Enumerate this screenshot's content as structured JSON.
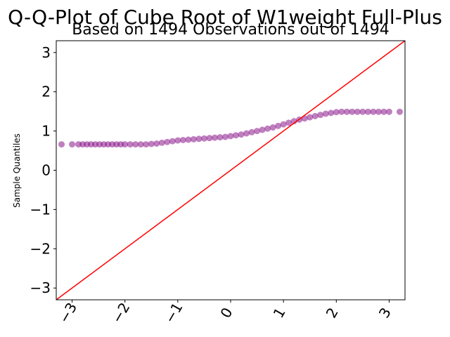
{
  "chart_data": {
    "type": "scatter",
    "title": "Q-Q-Plot of Cube Root of W1weight Full-Plus",
    "subtitle": "Based on 1494 Observations out of 1494",
    "xlabel": "",
    "ylabel": "Sample Quantiles",
    "xlim": [
      -3.3,
      3.3
    ],
    "ylim": [
      -3.3,
      3.3
    ],
    "x_ticks": [
      -3,
      -2,
      -1,
      0,
      1,
      2,
      3
    ],
    "y_ticks": [
      -3,
      -2,
      -1,
      0,
      1,
      2,
      3
    ],
    "x_tick_labels": [
      "−3",
      "−2",
      "−1",
      "0",
      "1",
      "2",
      "3"
    ],
    "y_tick_labels": [
      "−3",
      "−2",
      "−1",
      "0",
      "1",
      "2",
      "3"
    ],
    "grid": false,
    "reference_line": {
      "from": [
        -3.3,
        -3.3
      ],
      "to": [
        3.3,
        3.3
      ],
      "color": "#ff0000"
    },
    "marker_color": "#800080",
    "marker_alpha": 0.5,
    "series": [
      {
        "points": [
          [
            -3.2,
            0.66
          ],
          [
            -3.0,
            0.66
          ],
          [
            -2.88,
            0.66
          ],
          [
            -2.8,
            0.66
          ],
          [
            -2.72,
            0.66
          ],
          [
            -2.64,
            0.66
          ],
          [
            -2.56,
            0.66
          ],
          [
            -2.48,
            0.66
          ],
          [
            -2.4,
            0.66
          ],
          [
            -2.32,
            0.66
          ],
          [
            -2.24,
            0.66
          ],
          [
            -2.16,
            0.66
          ],
          [
            -2.08,
            0.66
          ],
          [
            -2.0,
            0.66
          ],
          [
            -1.9,
            0.66
          ],
          [
            -1.8,
            0.66
          ],
          [
            -1.7,
            0.66
          ],
          [
            -1.6,
            0.66
          ],
          [
            -1.5,
            0.67
          ],
          [
            -1.4,
            0.68
          ],
          [
            -1.3,
            0.7
          ],
          [
            -1.2,
            0.72
          ],
          [
            -1.1,
            0.74
          ],
          [
            -1.0,
            0.76
          ],
          [
            -0.9,
            0.77
          ],
          [
            -0.8,
            0.78
          ],
          [
            -0.7,
            0.79
          ],
          [
            -0.6,
            0.8
          ],
          [
            -0.5,
            0.81
          ],
          [
            -0.4,
            0.82
          ],
          [
            -0.3,
            0.83
          ],
          [
            -0.2,
            0.84
          ],
          [
            -0.1,
            0.85
          ],
          [
            0.0,
            0.87
          ],
          [
            0.1,
            0.89
          ],
          [
            0.2,
            0.91
          ],
          [
            0.3,
            0.94
          ],
          [
            0.4,
            0.97
          ],
          [
            0.5,
            1.0
          ],
          [
            0.6,
            1.03
          ],
          [
            0.7,
            1.06
          ],
          [
            0.8,
            1.09
          ],
          [
            0.9,
            1.13
          ],
          [
            1.0,
            1.17
          ],
          [
            1.1,
            1.21
          ],
          [
            1.2,
            1.25
          ],
          [
            1.3,
            1.29
          ],
          [
            1.4,
            1.32
          ],
          [
            1.5,
            1.35
          ],
          [
            1.6,
            1.38
          ],
          [
            1.7,
            1.41
          ],
          [
            1.8,
            1.44
          ],
          [
            1.9,
            1.46
          ],
          [
            2.0,
            1.48
          ],
          [
            2.1,
            1.49
          ],
          [
            2.2,
            1.49
          ],
          [
            2.3,
            1.49
          ],
          [
            2.4,
            1.49
          ],
          [
            2.5,
            1.49
          ],
          [
            2.6,
            1.49
          ],
          [
            2.7,
            1.49
          ],
          [
            2.8,
            1.49
          ],
          [
            2.9,
            1.49
          ],
          [
            3.0,
            1.49
          ],
          [
            3.2,
            1.49
          ]
        ]
      }
    ]
  }
}
